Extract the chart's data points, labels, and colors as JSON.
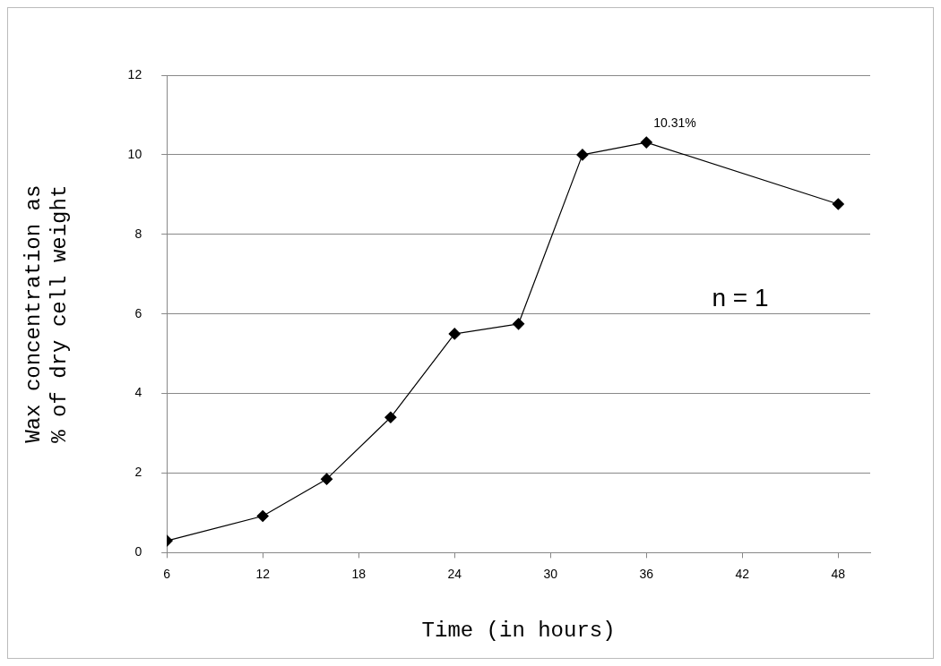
{
  "chart_data": {
    "type": "line",
    "xlabel": "Time (in hours)",
    "ylabel": "Wax concentration as\n% of dry cell weight",
    "x": [
      6,
      12,
      16,
      20,
      24,
      28,
      32,
      36,
      48
    ],
    "series": [
      {
        "color": "#000000",
        "values": [
          0.3,
          0.92,
          1.85,
          3.4,
          5.5,
          5.75,
          10.0,
          10.31,
          8.76
        ]
      }
    ],
    "xlim": [
      6,
      50
    ],
    "xticks": [
      6,
      12,
      18,
      24,
      30,
      36,
      42,
      48
    ],
    "ylim": [
      0,
      12
    ],
    "yticks": [
      0,
      2,
      4,
      6,
      8,
      10,
      12
    ],
    "grid": "y",
    "legend": false,
    "marker": "diamond",
    "line_style": "solid",
    "annotations": [
      {
        "text": "10.31%",
        "x": 36,
        "y": 10.31
      },
      "n = 1"
    ]
  }
}
